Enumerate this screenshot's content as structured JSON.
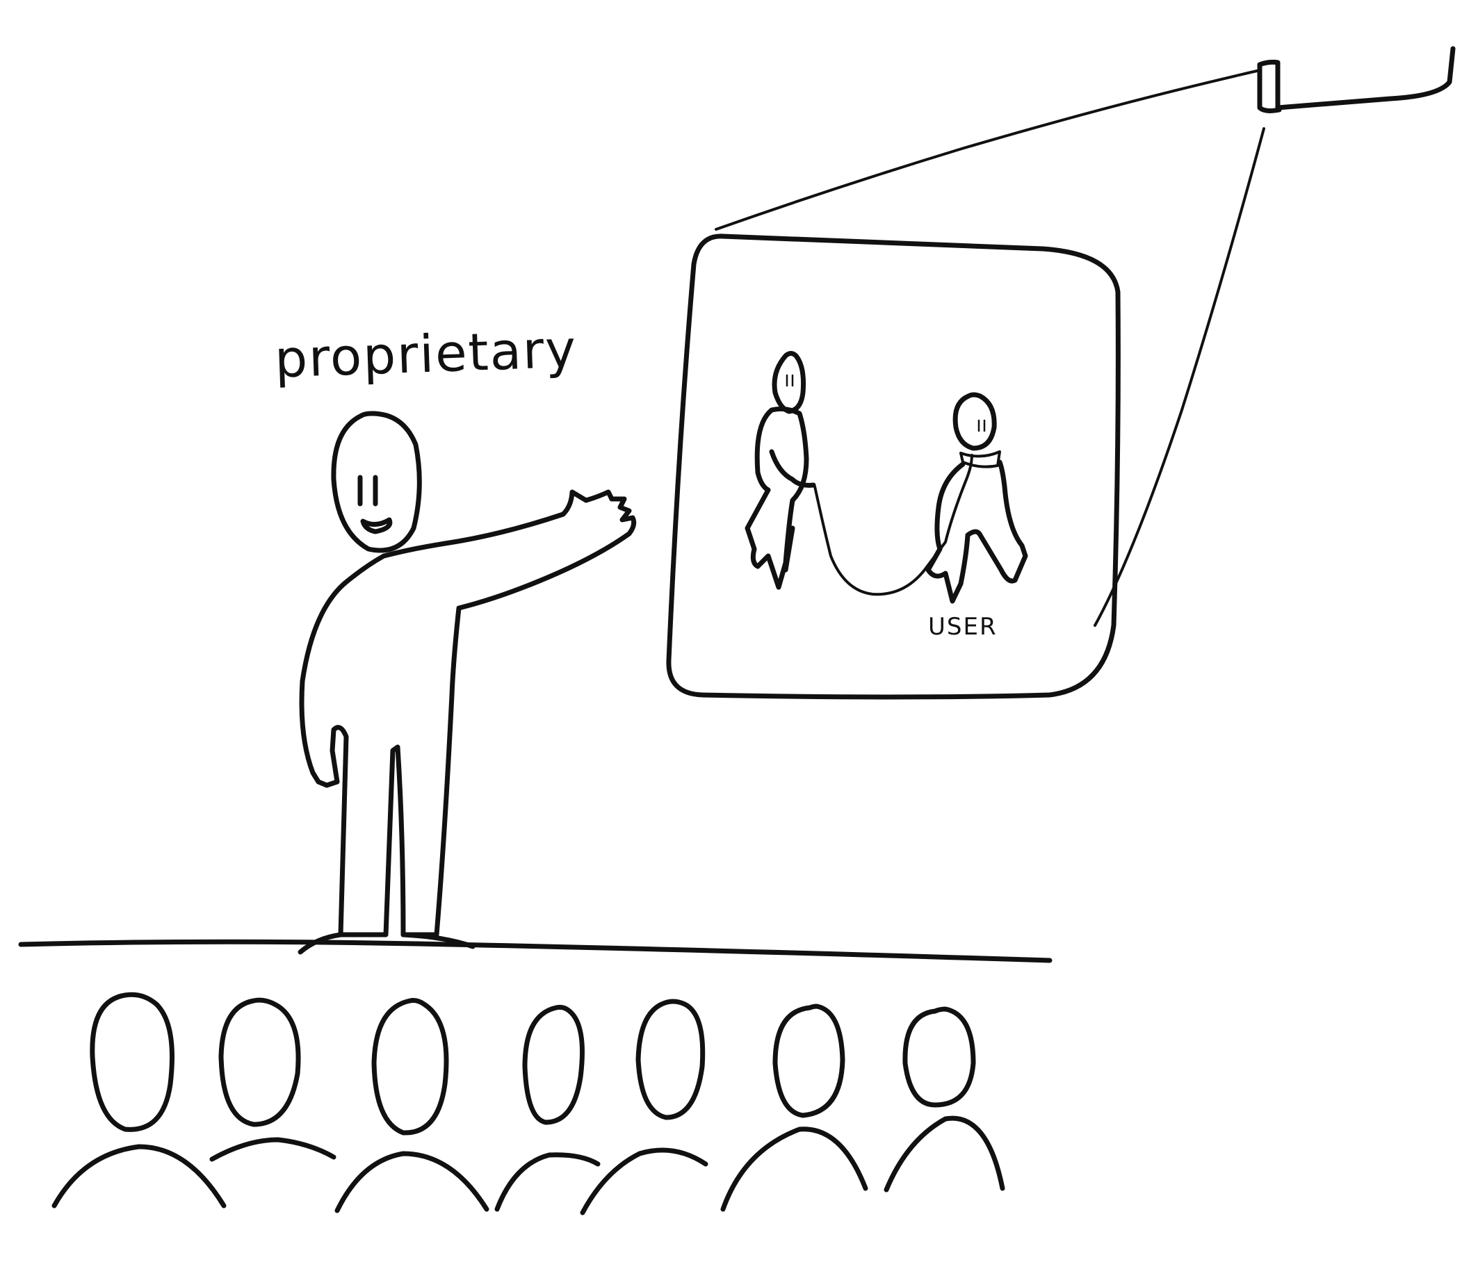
{
  "speaker": {
    "caption": "proprietary"
  },
  "slide": {
    "user_label": "USER"
  },
  "colors": {
    "ink": "#111111",
    "paper": "#ffffff"
  }
}
